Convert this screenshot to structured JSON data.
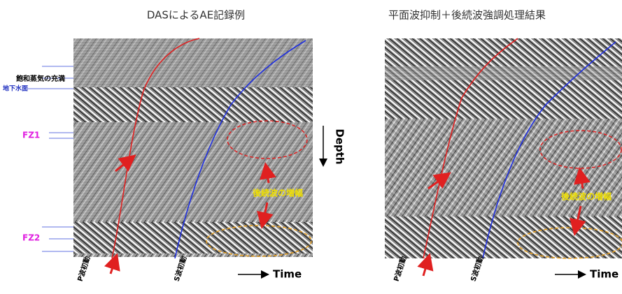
{
  "left_panel": {
    "title": "DASによるAE記録例",
    "saturated_steam": "飽和蒸気の充満",
    "water_table": "地下水面",
    "fz1": "FZ1",
    "fz2": "FZ2",
    "depth": "Depth",
    "time": "Time",
    "annotation": "後続波の増幅",
    "p_label": "P波初動",
    "s_label": "S波初動"
  },
  "right_panel": {
    "title": "平面波抑制＋後続波強調処理結果",
    "time": "Time",
    "annotation": "後続波の増幅",
    "p_label": "P波初動",
    "s_label": "S波初動"
  }
}
